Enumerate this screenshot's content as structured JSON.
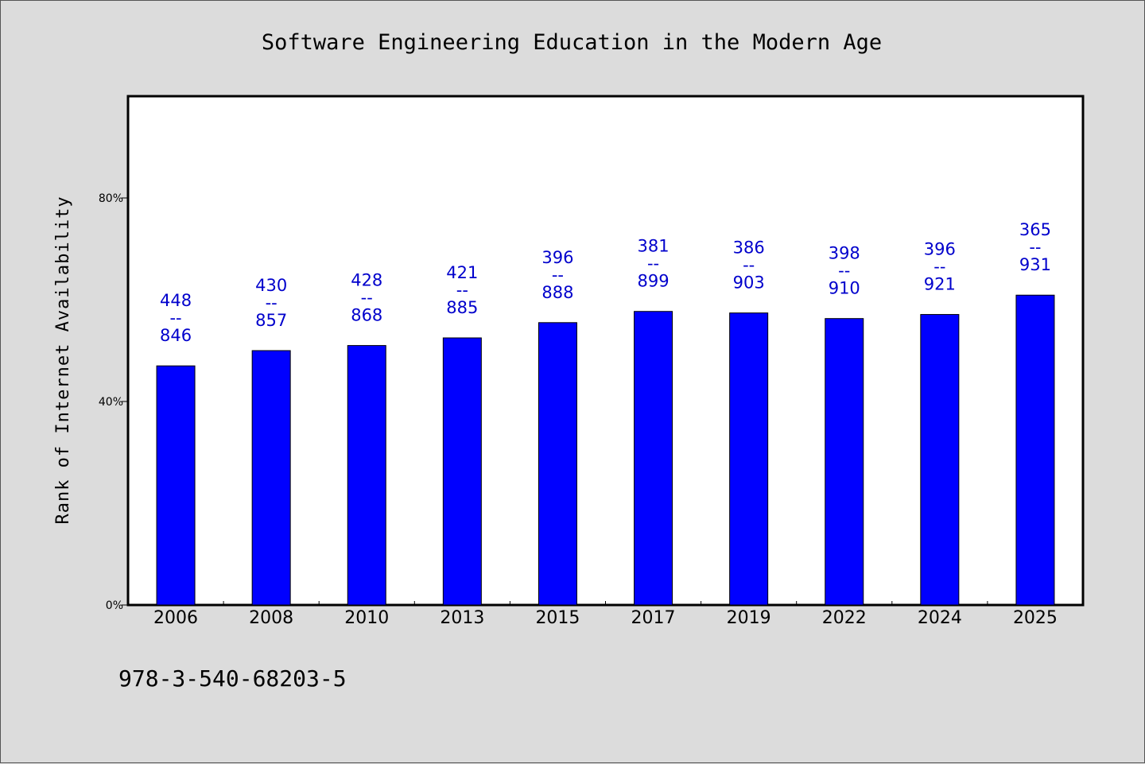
{
  "chart_data": {
    "type": "bar",
    "title": "Software Engineering Education in the Modern Age",
    "xlabel": "",
    "ylabel": "Rank of Internet Availability",
    "categories": [
      "2006",
      "2008",
      "2010",
      "2013",
      "2015",
      "2017",
      "2019",
      "2022",
      "2024",
      "2025"
    ],
    "values": [
      47,
      50,
      51,
      52.5,
      55.5,
      57.7,
      57.4,
      56.3,
      57.1,
      60.9
    ],
    "data_labels": [
      {
        "top": "448",
        "mid": "--",
        "bottom": "846"
      },
      {
        "top": "430",
        "mid": "--",
        "bottom": "857"
      },
      {
        "top": "428",
        "mid": "--",
        "bottom": "868"
      },
      {
        "top": "421",
        "mid": "--",
        "bottom": "885"
      },
      {
        "top": "396",
        "mid": "--",
        "bottom": "888"
      },
      {
        "top": "381",
        "mid": "--",
        "bottom": "899"
      },
      {
        "top": "386",
        "mid": "--",
        "bottom": "903"
      },
      {
        "top": "398",
        "mid": "--",
        "bottom": "910"
      },
      {
        "top": "396",
        "mid": "--",
        "bottom": "921"
      },
      {
        "top": "365",
        "mid": "--",
        "bottom": "931"
      }
    ],
    "yticks": [
      0,
      40,
      80
    ],
    "ytick_labels": [
      "0%",
      "40%",
      "80%"
    ],
    "ylim": [
      0,
      100
    ],
    "grid": false,
    "bar_color": "#0000ff",
    "label_color": "#0000cc",
    "footnote": "978-3-540-68203-5"
  }
}
